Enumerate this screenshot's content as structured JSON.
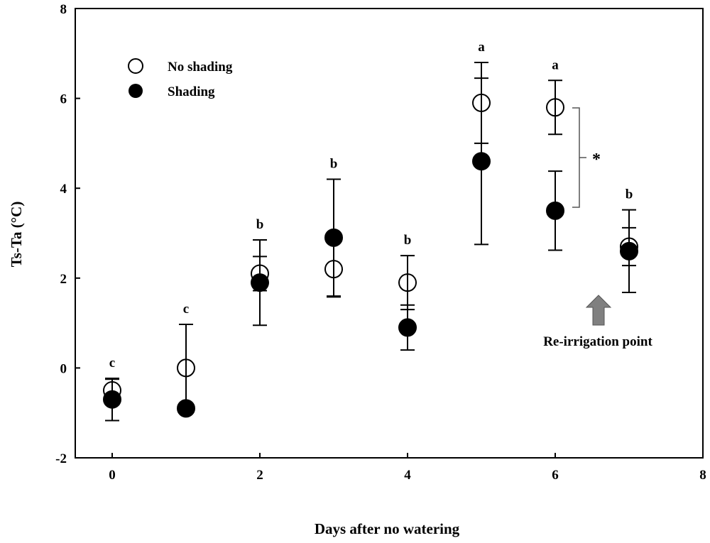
{
  "chart_data": {
    "type": "scatter",
    "xlabel": "Days after no watering",
    "ylabel": "Ts-Ta (°C)",
    "xlim": [
      0,
      8
    ],
    "ylim": [
      -2,
      8
    ],
    "xticks": [
      0,
      2,
      4,
      6,
      8
    ],
    "yticks": [
      -2,
      0,
      2,
      4,
      6,
      8
    ],
    "grid": false,
    "legend_position": "top-left",
    "x": [
      0,
      1,
      2,
      3,
      4,
      5,
      6,
      7
    ],
    "series": [
      {
        "name": "No shading",
        "marker": "open-circle",
        "values": [
          -0.5,
          0,
          2.1,
          2.2,
          1.9,
          5.9,
          5.8,
          2.7
        ],
        "errors": [
          0.25,
          0.97,
          0.38,
          0.62,
          0.6,
          0.9,
          0.6,
          0.42
        ]
      },
      {
        "name": "Shading",
        "marker": "filled-circle",
        "values": [
          -0.7,
          -0.9,
          1.9,
          2.9,
          0.9,
          4.6,
          3.5,
          2.6
        ],
        "errors": [
          0.47,
          0,
          0.95,
          1.3,
          0.5,
          1.85,
          0.88,
          0.92
        ]
      }
    ],
    "letters": [
      "c",
      "c",
      "b",
      "b",
      "b",
      "a",
      "a",
      "b"
    ],
    "significance": {
      "day": 6,
      "label": "*"
    },
    "annotation": {
      "text": "Re-irrigation point",
      "arrow_color": "#808080"
    }
  }
}
